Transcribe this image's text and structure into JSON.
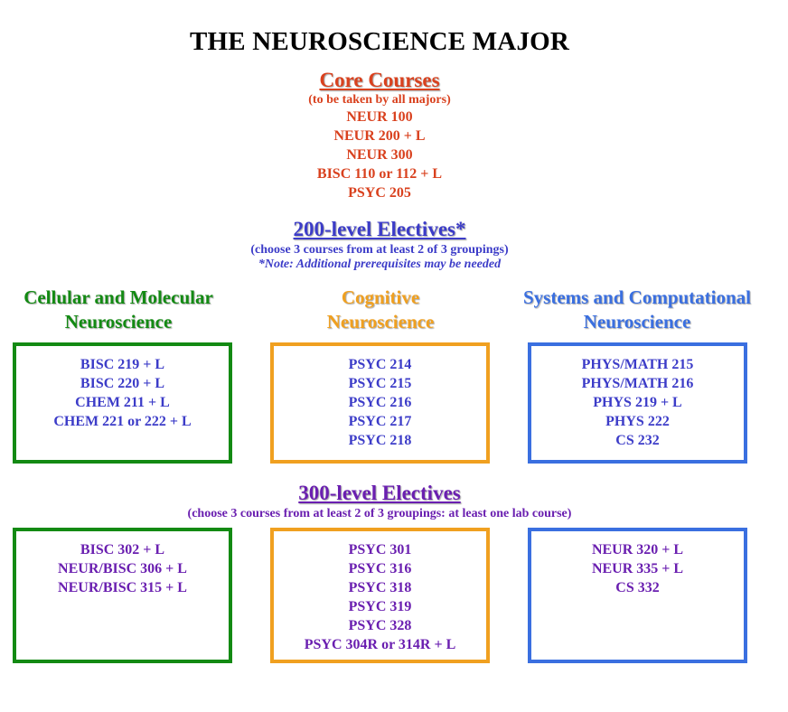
{
  "title": "THE NEUROSCIENCE MAJOR",
  "colors": {
    "core": "#d9411e",
    "elective_200": "#3c3cc8",
    "elective_300": "#6a1fb0",
    "cellular": "#138a13",
    "cognitive": "#f0a020",
    "systems": "#3a6fe0"
  },
  "core": {
    "heading": "Core Courses",
    "note": "(to be taken by all majors)",
    "courses": [
      "NEUR 100",
      "NEUR 200 + L",
      "NEUR 300",
      "BISC 110 or 112 + L",
      "PSYC 205"
    ]
  },
  "electives_200": {
    "heading": "200-level Electives*",
    "note": "(choose 3 courses from at least 2 of 3 groupings)",
    "footnote": "*Note: Additional prerequisites may be needed"
  },
  "groupings": {
    "cellular": [
      "Cellular and Molecular",
      "Neuroscience"
    ],
    "cognitive": [
      "Cognitive",
      "Neuroscience"
    ],
    "systems": [
      "Systems and Computational",
      "Neuroscience"
    ]
  },
  "boxes_200": {
    "cellular": [
      "BISC 219 + L",
      "BISC 220 + L",
      "CHEM 211 + L",
      "CHEM 221 or 222 + L"
    ],
    "cognitive": [
      "PSYC 214",
      "PSYC 215",
      "PSYC 216",
      "PSYC 217",
      "PSYC 218"
    ],
    "systems": [
      "PHYS/MATH 215",
      "PHYS/MATH 216",
      "PHYS 219 + L",
      "PHYS 222",
      "CS 232"
    ]
  },
  "electives_300": {
    "heading": "300-level Electives",
    "note": "(choose 3 courses from at least 2 of 3 groupings: at least one lab course)"
  },
  "boxes_300": {
    "cellular": [
      "BISC 302 + L",
      "NEUR/BISC 306 + L",
      "NEUR/BISC 315 + L"
    ],
    "cognitive": [
      "PSYC 301",
      "PSYC 316",
      "PSYC 318",
      "PSYC 319",
      "PSYC 328",
      "PSYC 304R or 314R + L"
    ],
    "systems": [
      "NEUR 320 + L",
      "NEUR 335 + L",
      "CS 332"
    ]
  }
}
